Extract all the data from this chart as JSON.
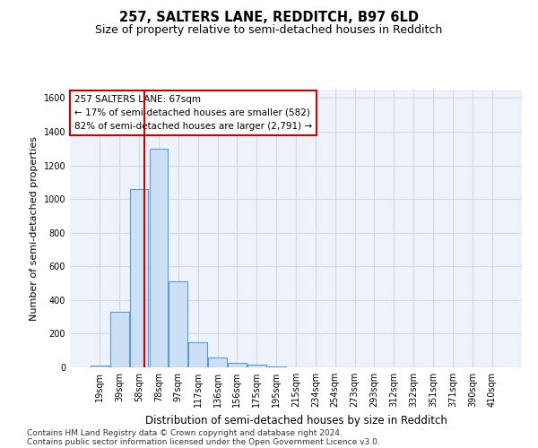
{
  "title1": "257, SALTERS LANE, REDDITCH, B97 6LD",
  "title2": "Size of property relative to semi-detached houses in Redditch",
  "xlabel": "Distribution of semi-detached houses by size in Redditch",
  "ylabel": "Number of semi-detached properties",
  "categories": [
    "19sqm",
    "39sqm",
    "58sqm",
    "78sqm",
    "97sqm",
    "117sqm",
    "136sqm",
    "156sqm",
    "175sqm",
    "195sqm",
    "215sqm",
    "234sqm",
    "254sqm",
    "273sqm",
    "293sqm",
    "312sqm",
    "332sqm",
    "351sqm",
    "371sqm",
    "390sqm",
    "410sqm"
  ],
  "values": [
    10,
    330,
    1060,
    1300,
    510,
    150,
    60,
    25,
    15,
    5,
    0,
    0,
    0,
    0,
    0,
    0,
    0,
    0,
    0,
    0,
    0
  ],
  "bar_color": "#cce0f5",
  "bar_edge_color": "#5b9bd5",
  "vline_color": "#cc0000",
  "annotation_box_color": "#ffffff",
  "annotation_box_edge": "#cc0000",
  "property_line_label": "257 SALTERS LANE: 67sqm",
  "annotation_smaller": "← 17% of semi-detached houses are smaller (582)",
  "annotation_larger": "82% of semi-detached houses are larger (2,791) →",
  "ylim": [
    0,
    1650
  ],
  "yticks": [
    0,
    200,
    400,
    600,
    800,
    1000,
    1200,
    1400,
    1600
  ],
  "grid_color": "#d0d8e8",
  "bg_color": "#edf2fb",
  "footer1": "Contains HM Land Registry data © Crown copyright and database right 2024.",
  "footer2": "Contains public sector information licensed under the Open Government Licence v3.0.",
  "title1_fontsize": 10.5,
  "title2_fontsize": 9,
  "xlabel_fontsize": 8.5,
  "ylabel_fontsize": 8,
  "tick_fontsize": 7,
  "annotation_fontsize": 7.5,
  "footer_fontsize": 6.5,
  "vline_x_index": 2.25
}
